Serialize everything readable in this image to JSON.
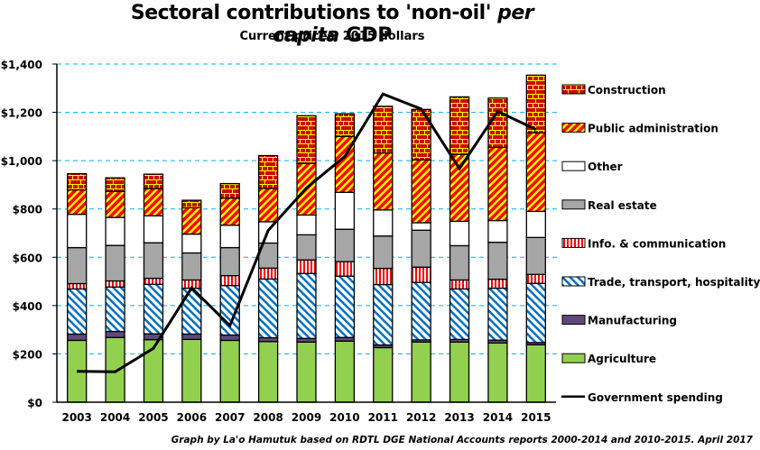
{
  "chart_data": {
    "type": "bar",
    "stacked": true,
    "title_main": "Sectoral contributions to 'non-oil'",
    "title_italic": "per capita",
    "title_end": "GDP",
    "subtitle": "Current prices, 2015 dollars",
    "xlabel": "",
    "ylabel": "",
    "ylim": [
      0,
      1400
    ],
    "yticks": [
      0,
      200,
      400,
      600,
      800,
      1000,
      1200,
      1400
    ],
    "ytick_labels": [
      "$0",
      "$200",
      "$400",
      "$600",
      "$800",
      "$1,000",
      "$1,200",
      "$1,400"
    ],
    "grid": "horizontal dashed",
    "legend_position": "right",
    "categories": [
      "2003",
      "2004",
      "2005",
      "2006",
      "2007",
      "2008",
      "2009",
      "2010",
      "2011",
      "2012",
      "2013",
      "2014",
      "2015"
    ],
    "series": [
      {
        "name": "Agriculture",
        "pattern": "solid",
        "color": "#92d050",
        "values": [
          256,
          268,
          259,
          260,
          256,
          251,
          249,
          253,
          226,
          249,
          249,
          245,
          238
        ]
      },
      {
        "name": "Manufacturing",
        "pattern": "solid",
        "color": "#5f497a",
        "values": [
          26,
          25,
          24,
          22,
          22,
          16,
          15,
          15,
          11,
          9,
          11,
          12,
          9
        ]
      },
      {
        "name": "Trade, transport, hospitality",
        "pattern": "diagonal-blue",
        "color": "#0070c0",
        "values": [
          187,
          184,
          205,
          190,
          205,
          243,
          269,
          254,
          250,
          238,
          209,
          215,
          245
        ]
      },
      {
        "name": "Info. & communication",
        "pattern": "vertical-red",
        "color": "#ff0000",
        "values": [
          22,
          25,
          25,
          34,
          41,
          45,
          56,
          60,
          67,
          63,
          37,
          37,
          37
        ]
      },
      {
        "name": "Real estate",
        "pattern": "solid",
        "color": "#a6a6a6",
        "values": [
          149,
          147,
          147,
          112,
          116,
          104,
          104,
          134,
          134,
          153,
          142,
          153,
          153
        ]
      },
      {
        "name": "Other",
        "pattern": "solid",
        "color": "#ffffff",
        "values": [
          138,
          116,
          112,
          78,
          93,
          88,
          82,
          153,
          108,
          31,
          101,
          90,
          108
        ]
      },
      {
        "name": "Public administration",
        "pattern": "diagonal-red-yellow",
        "color": "#ff0000",
        "values": [
          101,
          108,
          112,
          109,
          112,
          138,
          214,
          231,
          235,
          260,
          277,
          303,
          325
        ]
      },
      {
        "name": "Construction",
        "pattern": "brick",
        "color": "#cc0000",
        "values": [
          67,
          56,
          60,
          31,
          60,
          136,
          197,
          94,
          194,
          209,
          238,
          204,
          239
        ]
      }
    ],
    "line_series": {
      "name": "Government spending",
      "color": "#000000",
      "values": [
        128,
        126,
        223,
        473,
        317,
        711,
        887,
        1017,
        1276,
        1214,
        967,
        1204,
        1129
      ]
    },
    "legend_order": [
      "Construction",
      "Public administration",
      "Other",
      "Real estate",
      "Info. & communication",
      "Trade, transport, hospitality",
      "Manufacturing",
      "Agriculture",
      "Government spending"
    ]
  },
  "footer": "Graph by La'o Hamutuk based on RDTL  DGE National Accounts reports 2000-2014  and 2010-2015.   April 2017"
}
